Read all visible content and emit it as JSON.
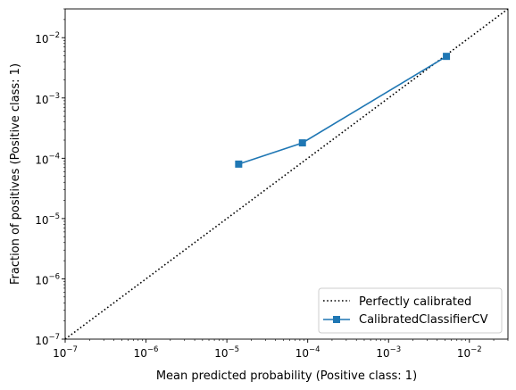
{
  "chart_data": {
    "type": "line",
    "xlabel": "Mean predicted probability (Positive class: 1)",
    "ylabel": "Fraction of positives (Positive class: 1)",
    "xscale": "log",
    "yscale": "log",
    "xlim": [
      1e-07,
      0.03
    ],
    "ylim": [
      1e-07,
      0.03
    ],
    "xticks": [
      {
        "value": 1e-07,
        "base": "10",
        "exp": "−7"
      },
      {
        "value": 1e-06,
        "base": "10",
        "exp": "−6"
      },
      {
        "value": 1e-05,
        "base": "10",
        "exp": "−5"
      },
      {
        "value": 0.0001,
        "base": "10",
        "exp": "−4"
      },
      {
        "value": 0.001,
        "base": "10",
        "exp": "−3"
      },
      {
        "value": 0.01,
        "base": "10",
        "exp": "−2"
      }
    ],
    "yticks": [
      {
        "value": 1e-07,
        "base": "10",
        "exp": "−7"
      },
      {
        "value": 1e-06,
        "base": "10",
        "exp": "−6"
      },
      {
        "value": 1e-05,
        "base": "10",
        "exp": "−5"
      },
      {
        "value": 0.0001,
        "base": "10",
        "exp": "−4"
      },
      {
        "value": 0.001,
        "base": "10",
        "exp": "−3"
      },
      {
        "value": 0.01,
        "base": "10",
        "exp": "−2"
      }
    ],
    "legend_position": "lower-right",
    "series": [
      {
        "name": "Perfectly calibrated",
        "style": "dotted",
        "color": "#000000",
        "x": [
          1e-07,
          0.03
        ],
        "y": [
          1e-07,
          0.03
        ]
      },
      {
        "name": "CalibratedClassifierCV",
        "style": "solid",
        "marker": "square",
        "color": "#1f77b4",
        "x": [
          1.4e-05,
          8.6e-05,
          0.0052
        ],
        "y": [
          8e-05,
          0.00018,
          0.0049
        ]
      }
    ]
  }
}
